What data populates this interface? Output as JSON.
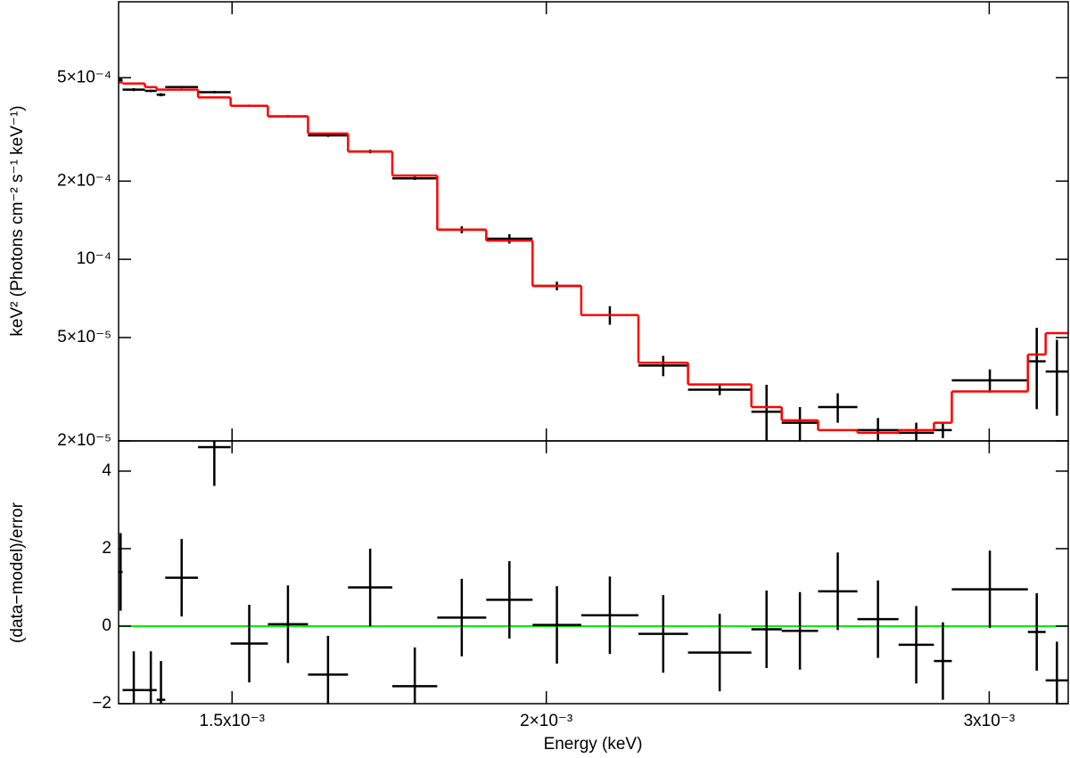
{
  "chart_data": [
    {
      "type": "step-errorbar",
      "xscale": "log",
      "yscale": "log",
      "ylabel": "keV² (Photons cm⁻² s⁻¹ keV⁻¹)",
      "xlim": [
        0.001352,
        0.003225
      ],
      "ylim": [
        2e-05,
        0.00098
      ],
      "xticks": [
        0.0015,
        0.002,
        0.003
      ],
      "yticks": [
        {
          "value": 2e-05,
          "label": "2×10⁻⁵"
        },
        {
          "value": 5e-05,
          "label": "5×10⁻⁵"
        },
        {
          "value": 0.0001,
          "label": "10⁻⁴"
        },
        {
          "value": 0.0002,
          "label": "2×10⁻⁴"
        },
        {
          "value": 0.0005,
          "label": "5×10⁻⁴"
        }
      ],
      "bin_edges": [
        0.001352,
        0.001357,
        0.001385,
        0.0014,
        0.001411,
        0.001454,
        0.001498,
        0.00155,
        0.001608,
        0.001668,
        0.001737,
        0.00181,
        0.001893,
        0.001975,
        0.002065,
        0.002176,
        0.002277,
        0.002413,
        0.002481,
        0.002565,
        0.002659,
        0.002761,
        0.002852,
        0.002899,
        0.003108,
        0.003159,
        0.003225
      ],
      "series": [
        {
          "name": "data",
          "color": "#000000",
          "values": [
            0.00049,
            0.00045,
            0.000445,
            0.00043,
            0.00046,
            0.00044,
            0.00039,
            0.000355,
            0.0003,
            0.00026,
            0.000205,
            0.00013,
            0.00012,
            7.9e-05,
            6.1e-05,
            3.9e-05,
            3.15e-05,
            2.59e-05,
            2.35e-05,
            2.7e-05,
            2.2e-05,
            2.15e-05,
            2.2e-05,
            3.42e-05,
            4.05e-05,
            3.7e-05
          ],
          "errors": [
            8e-06,
            6e-06,
            5e-06,
            6e-06,
            5e-06,
            5e-06,
            4e-06,
            4e-06,
            4e-06,
            4e-06,
            3e-06,
            4e-06,
            5e-06,
            3e-06,
            5e-06,
            3.5e-06,
            1.5e-06,
            7e-06,
            3.5e-06,
            3.5e-06,
            2.5e-06,
            2e-06,
            1.5e-06,
            3.5e-06,
            1.4e-05,
            1.2e-05
          ]
        },
        {
          "name": "model",
          "color": "#ff0000",
          "values": [
            0.00048,
            0.000475,
            0.00046,
            0.00045,
            0.00045,
            0.00042,
            0.00039,
            0.000355,
            0.000305,
            0.00026,
            0.00021,
            0.00013,
            0.000118,
            7.9e-05,
            6.1e-05,
            4e-05,
            3.3e-05,
            2.7e-05,
            2.4e-05,
            2.2e-05,
            2.15e-05,
            2.2e-05,
            2.35e-05,
            3.1e-05,
            4.3e-05,
            5.2e-05
          ]
        }
      ]
    },
    {
      "type": "residual",
      "xscale": "log",
      "xlabel": "Energy (keV)",
      "ylabel": "(data−model)/error",
      "xlim": [
        0.001352,
        0.003225
      ],
      "ylim": [
        -2,
        4.78
      ],
      "xticks": [
        {
          "value": 0.0015,
          "label": "1.5x10⁻³"
        },
        {
          "value": 0.002,
          "label": "2×10⁻³"
        },
        {
          "value": 0.003,
          "label": "3x10⁻³"
        }
      ],
      "yticks": [
        {
          "value": -2,
          "label": "−2"
        },
        0,
        2,
        4
      ],
      "zero_line": 0,
      "zero_color": "#00ee00",
      "color": "#000000",
      "values": [
        1.4,
        -1.65,
        -1.65,
        -1.9,
        1.25,
        4.62,
        -0.45,
        0.05,
        -1.25,
        1.0,
        -1.55,
        0.22,
        0.68,
        0.03,
        0.28,
        -0.2,
        -0.68,
        -0.08,
        -0.12,
        0.9,
        0.18,
        -0.48,
        -0.9,
        0.95,
        -0.15,
        -1.4
      ],
      "errors": [
        1,
        1,
        1,
        1,
        1,
        1,
        1,
        1,
        1,
        1,
        1,
        1,
        1,
        1,
        1,
        1,
        1,
        1,
        1,
        1,
        1,
        1,
        1,
        1,
        1,
        1
      ]
    }
  ]
}
